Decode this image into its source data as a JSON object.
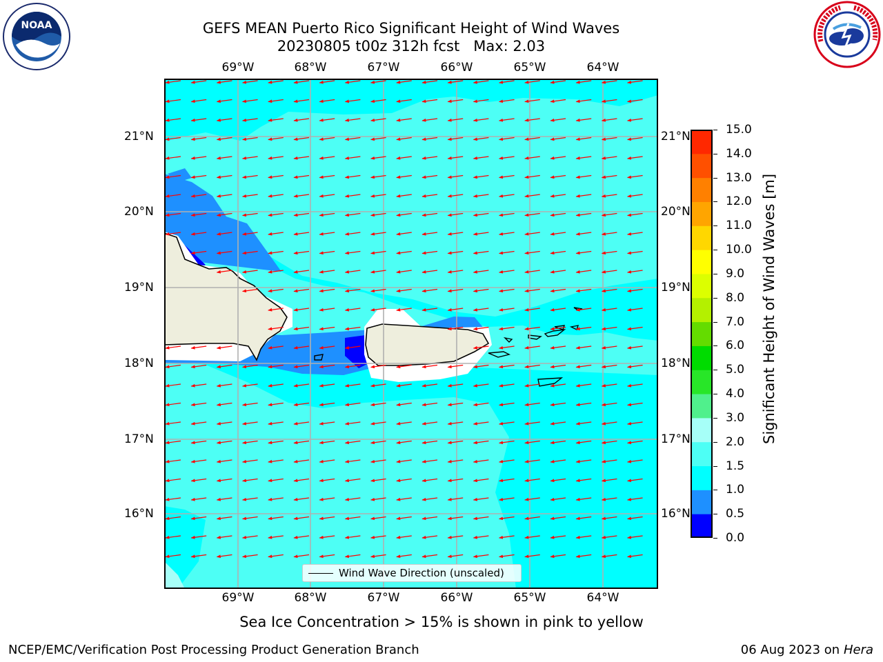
{
  "title": {
    "line1": "GEFS MEAN Puerto Rico Significant Height of Wind Waves",
    "line2": "20230805 t00z 312h fcst   Max: 2.03"
  },
  "logos": {
    "left": {
      "icon": "noaa-logo",
      "text": "NOAA"
    },
    "right": {
      "icon": "national-weather-service-logo"
    }
  },
  "map": {
    "lon_ticks": [
      "69°W",
      "68°W",
      "67°W",
      "66°W",
      "65°W",
      "64°W"
    ],
    "lat_ticks": [
      "21°N",
      "20°N",
      "19°N",
      "18°N",
      "17°N",
      "16°N"
    ],
    "legend": "Wind Wave Direction (unscaled)",
    "wave_direction": "from east-northeast",
    "colors": {
      "ocean_low": "#00ffff",
      "ocean_mid": "#4dfff5",
      "ocean_shallow": "#1e90ff",
      "ocean_dark": "#0000ff",
      "land": "#eeeedd",
      "arrow": "#ff0000"
    }
  },
  "colorbar": {
    "label": "Significant Height of Wind Waves [m]",
    "ticks": [
      "0.0",
      "0.5",
      "1.0",
      "1.5",
      "2.0",
      "3.0",
      "4.0",
      "5.0",
      "6.0",
      "7.0",
      "8.0",
      "9.0",
      "10.0",
      "11.0",
      "12.0",
      "13.0",
      "14.0",
      "15.0"
    ],
    "colors": [
      "#0000ff",
      "#1e90ff",
      "#00ffff",
      "#4dfff5",
      "#a6fff8",
      "#50f08c",
      "#28e628",
      "#00dc00",
      "#64dc00",
      "#b4f000",
      "#dcff00",
      "#ffff00",
      "#ffd700",
      "#ffa500",
      "#ff8000",
      "#ff5000",
      "#ff2800",
      "#ff0000"
    ]
  },
  "subtitle": "Sea Ice Concentration > 15% is shown in pink to yellow",
  "footer": {
    "left": "NCEP/EMC/Verification Post Processing Product Generation Branch",
    "date": "06 Aug 2023 on",
    "host": "Hera"
  }
}
